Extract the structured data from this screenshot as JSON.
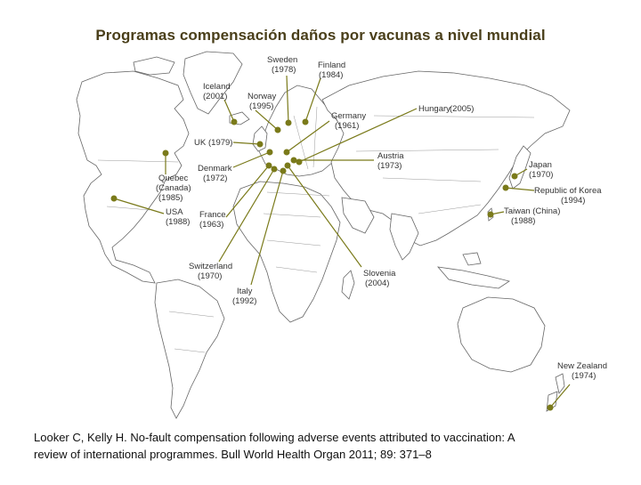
{
  "title": "Programas compensación daños por vacunas a nivel mundial",
  "citation": {
    "line1": "Looker C, Kelly H. No-fault compensation following adverse events attributed to vaccination: A",
    "line2": "review of international programmes. Bull World Health Organ 2011; 89: 371–8"
  },
  "colors": {
    "marker": "#7a7a1a",
    "title": "#4a3f1a"
  },
  "countries": [
    {
      "id": "sweden",
      "name": "Sweden",
      "year": "(1978)"
    },
    {
      "id": "finland",
      "name": "Finland",
      "year": "(1984)"
    },
    {
      "id": "iceland",
      "name": "Iceland",
      "year": "(2001)"
    },
    {
      "id": "norway",
      "name": "Norway",
      "year": "(1995)"
    },
    {
      "id": "hungary",
      "name": "Hungary",
      "year": "(2005)"
    },
    {
      "id": "germany",
      "name": "Germany",
      "year": "(1961)"
    },
    {
      "id": "uk",
      "name": "UK",
      "year": "(1979)"
    },
    {
      "id": "austria",
      "name": "Austria",
      "year": "(1973)"
    },
    {
      "id": "japan",
      "name": "Japan",
      "year": "(1970)"
    },
    {
      "id": "quebec",
      "name": "Quebec",
      "name2": "(Canada)",
      "year": "(1985)"
    },
    {
      "id": "denmark",
      "name": "Denmark",
      "year": "(1972)"
    },
    {
      "id": "korea",
      "name": "Republic of Korea",
      "year": "(1994)"
    },
    {
      "id": "usa",
      "name": "USA",
      "year": "(1988)"
    },
    {
      "id": "taiwan",
      "name": "Taiwan (China)",
      "year": "(1988)"
    },
    {
      "id": "france",
      "name": "France",
      "year": "(1963)"
    },
    {
      "id": "switzerland",
      "name": "Switzerland",
      "year": "(1970)"
    },
    {
      "id": "slovenia",
      "name": "Slovenia",
      "year": "(2004)"
    },
    {
      "id": "italy",
      "name": "Italy",
      "year": "(1992)"
    },
    {
      "id": "newzealand",
      "name": "New Zealand",
      "year": "(1974)"
    }
  ]
}
